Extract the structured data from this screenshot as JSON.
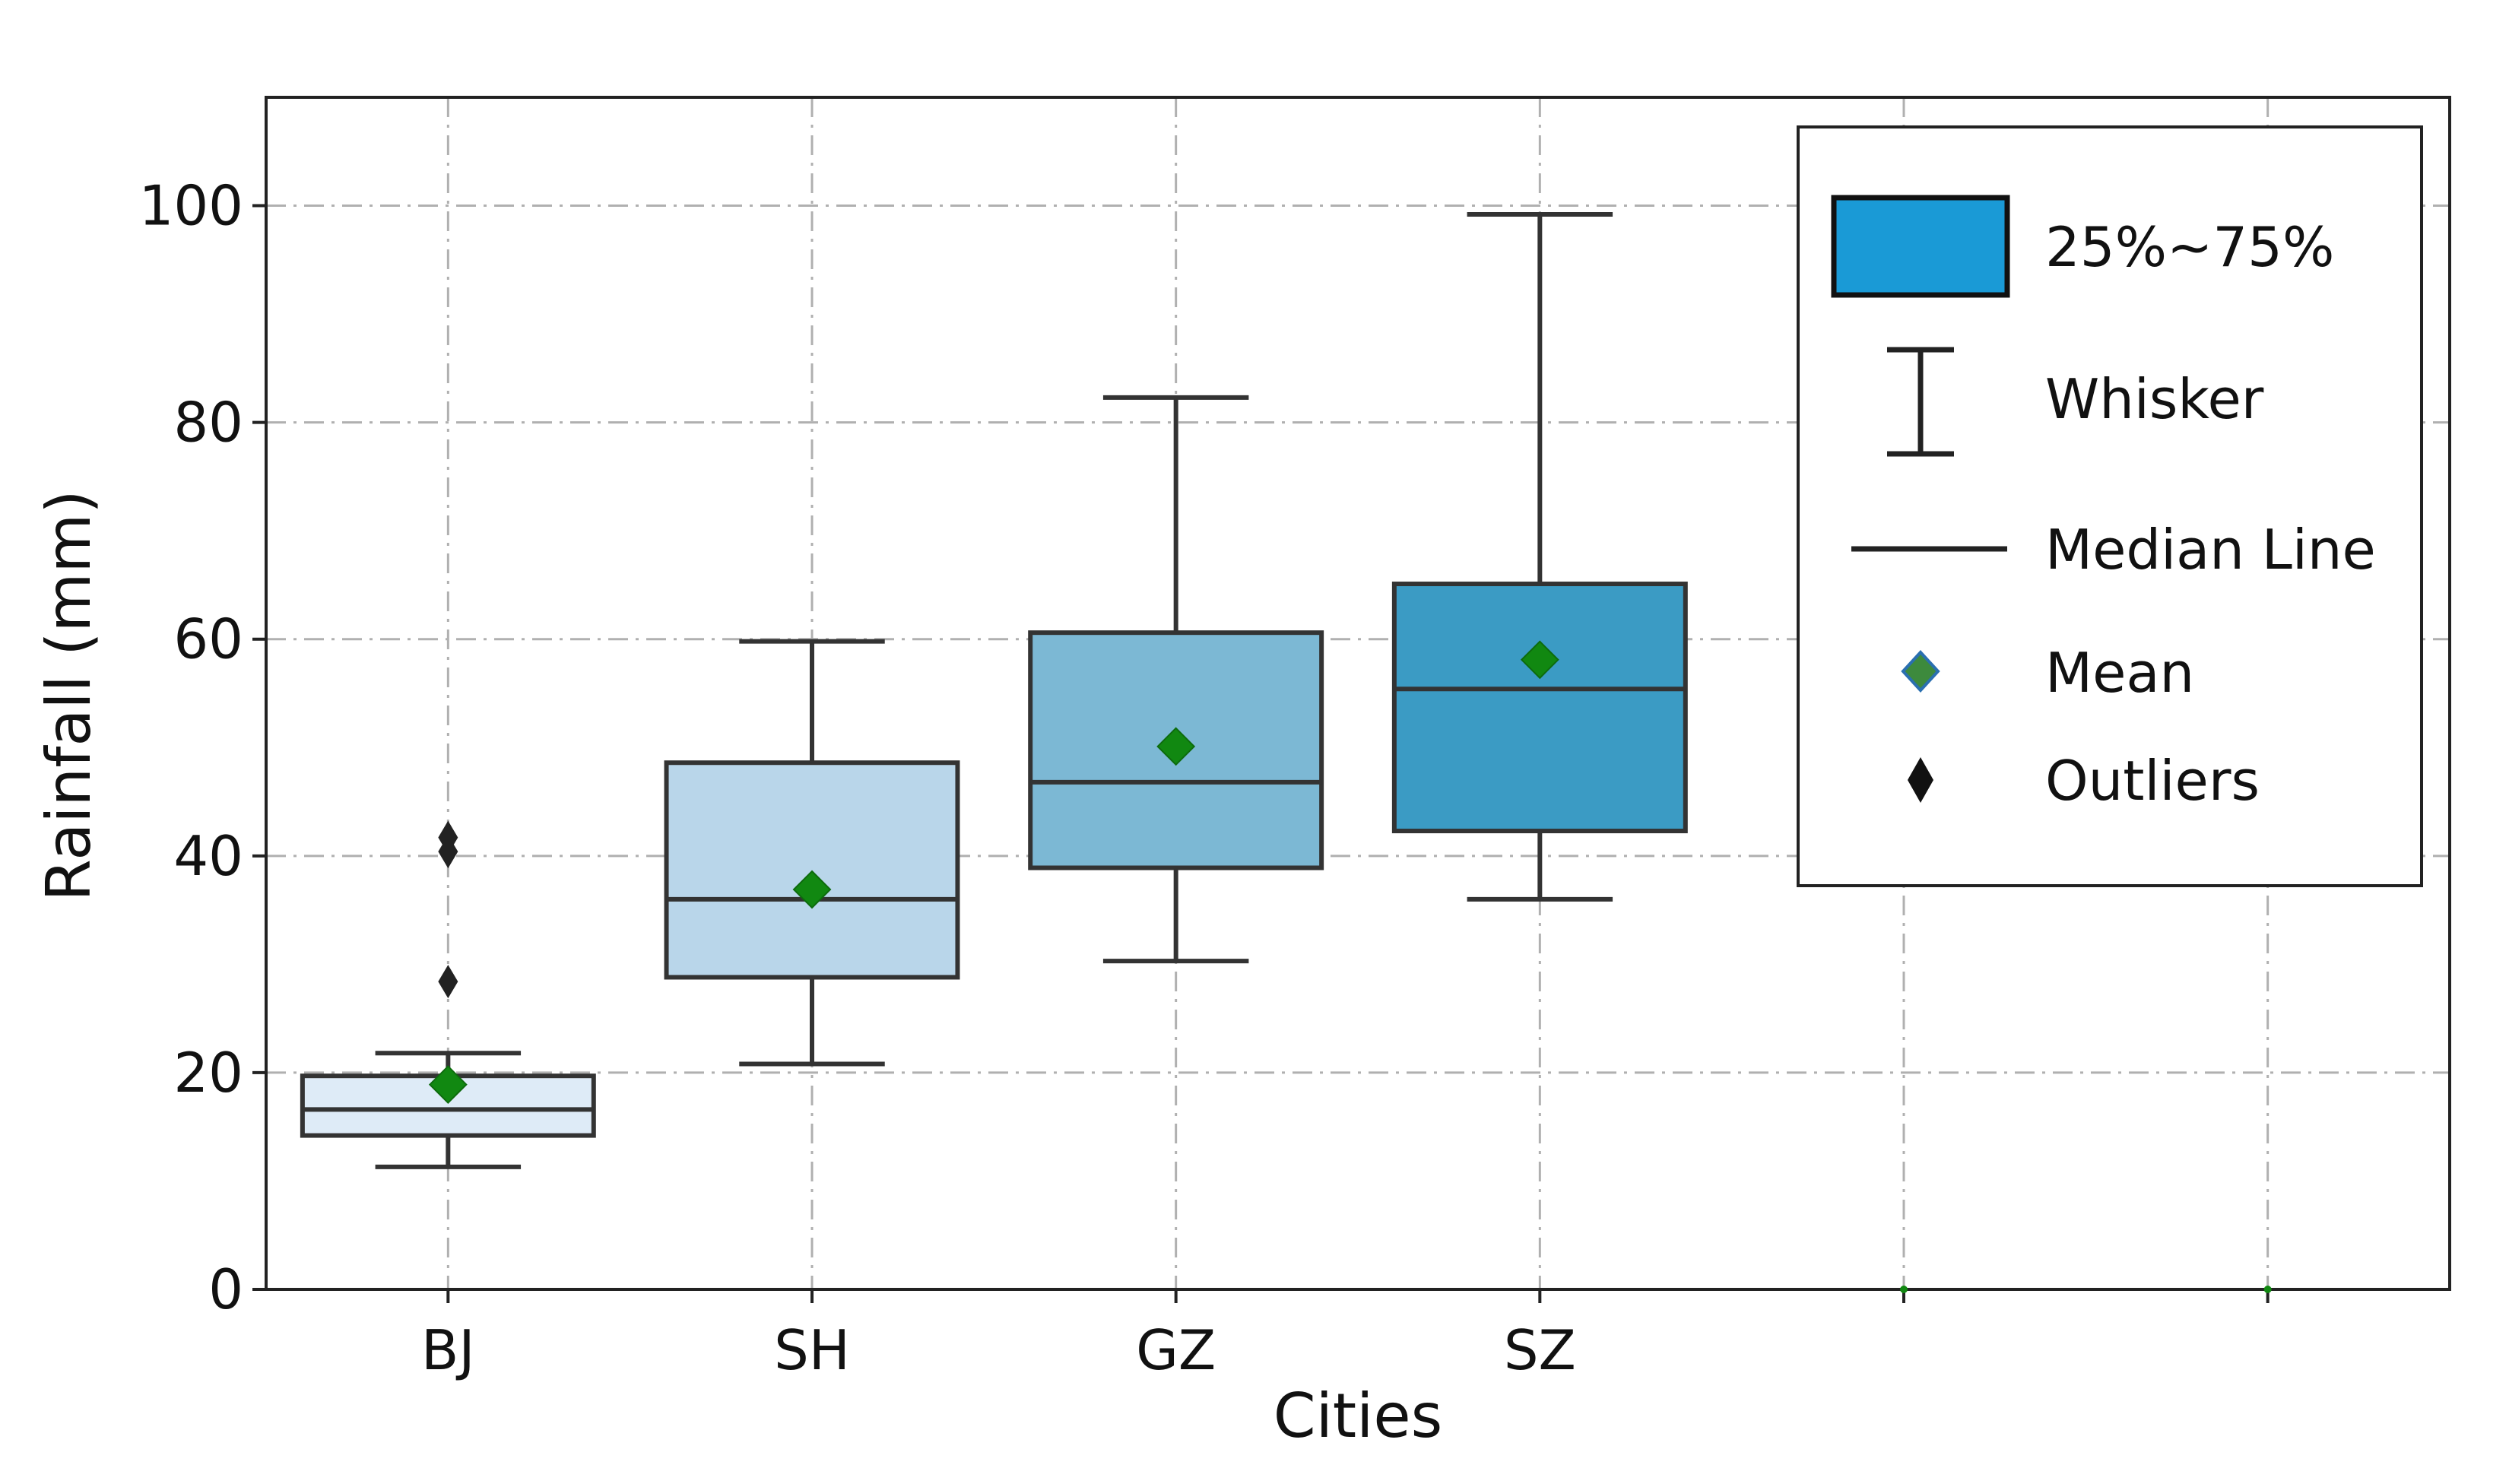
{
  "chart_data": {
    "type": "box",
    "title": "",
    "xlabel": "Cities",
    "ylabel": "Rainfall (mm)",
    "ylim": [
      0,
      110
    ],
    "yticks": [
      0,
      20,
      40,
      60,
      80,
      100
    ],
    "categories": [
      "BJ",
      "SH",
      "GZ",
      "SZ",
      "",
      ""
    ],
    "grid": true,
    "boxes": [
      {
        "category": "BJ",
        "whisker_low": 11.3,
        "q1": 14.2,
        "median": 16.6,
        "q3": 19.7,
        "whisker_high": 21.8,
        "mean": 18.9,
        "outliers": [
          28.4,
          40.4,
          41.7
        ],
        "color": "#deebf7"
      },
      {
        "category": "SH",
        "whisker_low": 20.8,
        "q1": 28.8,
        "median": 36.0,
        "q3": 48.6,
        "whisker_high": 59.8,
        "mean": 36.9,
        "outliers": [],
        "color": "#b9d6ea"
      },
      {
        "category": "GZ",
        "whisker_low": 30.3,
        "q1": 38.9,
        "median": 46.8,
        "q3": 60.6,
        "whisker_high": 82.3,
        "mean": 50.1,
        "outliers": [],
        "color": "#7cb8d4"
      },
      {
        "category": "SZ",
        "whisker_low": 36.0,
        "q1": 42.3,
        "median": 55.4,
        "q3": 65.1,
        "whisker_high": 99.2,
        "mean": 58.1,
        "outliers": [],
        "color": "#3b9bc4"
      }
    ],
    "legend": {
      "position": "top-right",
      "entries": [
        {
          "label": "25%~75%",
          "marker": "box",
          "color": "#1a9ad6"
        },
        {
          "label": "Whisker",
          "marker": "whisker"
        },
        {
          "label": "Median Line",
          "marker": "line"
        },
        {
          "label": "Mean",
          "marker": "diamond",
          "color": "#3d8a3d"
        },
        {
          "label": "Outliers",
          "marker": "diamond",
          "color": "#111111"
        }
      ]
    },
    "colors": {
      "mean": "#118811",
      "outlier": "#222222",
      "edge": "#333333",
      "grid": "#b0b0b0"
    }
  }
}
